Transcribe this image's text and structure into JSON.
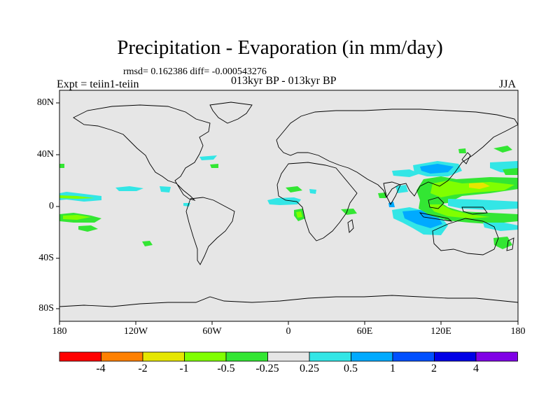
{
  "header": {
    "title": "Precipitation - Evaporation (in mm/day)",
    "stats": "rmsd= 0.162386 diff= -0.000543276",
    "subtitle": "013kyr BP - 013kyr BP",
    "experiment": "Expt = teiin1-teiin",
    "season": "JJA"
  },
  "axes": {
    "lat_ticks": [
      "80N",
      "40N",
      "0",
      "40S",
      "80S"
    ],
    "lon_ticks": [
      "180",
      "120W",
      "60W",
      "0",
      "60E",
      "120E",
      "180"
    ]
  },
  "colorbar": {
    "colors": [
      "#ff0000",
      "#ff8000",
      "#e6e600",
      "#80ff00",
      "#33e633",
      "#e6e6e6",
      "#33e6e6",
      "#00aaff",
      "#0050ff",
      "#0000e6",
      "#8000e6"
    ],
    "labels": [
      "-4",
      "-2",
      "-1",
      "-0.5",
      "-0.25",
      "0.25",
      "0.5",
      "1",
      "2",
      "4"
    ]
  },
  "colors": {
    "background": "#e6e6e6",
    "coastline": "#000000"
  }
}
